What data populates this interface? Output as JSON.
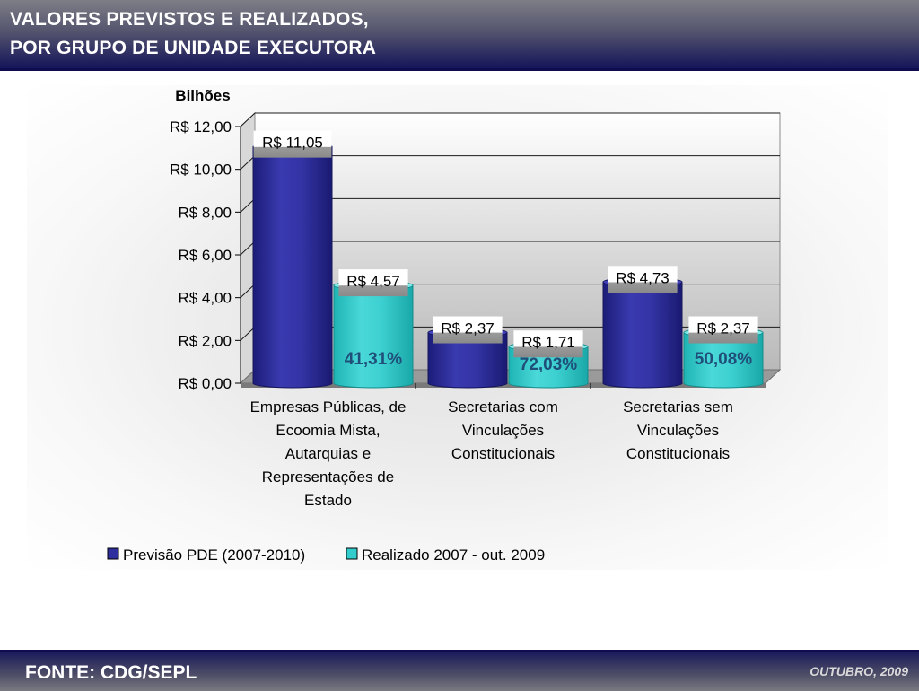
{
  "header": {
    "title_line1": "VALORES PREVISTOS E REALIZADOS,",
    "title_line2": "POR GRUPO DE UNIDADE EXECUTORA"
  },
  "footer": {
    "source": "FONTE: CDG/SEPL",
    "date": "OUTUBRO, 2009"
  },
  "colors": {
    "previsao": "#2e2e9e",
    "realizado": "#33cccc",
    "percent_text": "#1f4e79"
  },
  "chart_data": {
    "type": "bar",
    "ylabel": "Bilhões",
    "ylim": [
      0,
      12
    ],
    "yticks": [
      "R$ 0,00",
      "R$ 2,00",
      "R$ 4,00",
      "R$ 6,00",
      "R$ 8,00",
      "R$ 10,00",
      "R$ 12,00"
    ],
    "grid": true,
    "legend_position": "bottom",
    "categories": [
      [
        "Empresas Públicas, de",
        "Ecoomia Mista,",
        "Autarquias e",
        "Representações de",
        "Estado"
      ],
      [
        "Secretarias com",
        "Vinculações",
        "Constitucionais"
      ],
      [
        "Secretarias sem",
        "Vinculações",
        "Constitucionais"
      ]
    ],
    "series": [
      {
        "name": "Previsão PDE (2007-2010)",
        "values": [
          11.05,
          2.37,
          4.73
        ],
        "labels": [
          "R$ 11,05",
          "R$ 2,37",
          "R$ 4,73"
        ]
      },
      {
        "name": "Realizado 2007 - out. 2009",
        "values": [
          4.57,
          1.71,
          2.37
        ],
        "labels": [
          "R$ 4,57",
          "R$ 1,71",
          "R$ 2,37"
        ]
      }
    ],
    "percentages": [
      "41,31%",
      "72,03%",
      "50,08%"
    ]
  }
}
